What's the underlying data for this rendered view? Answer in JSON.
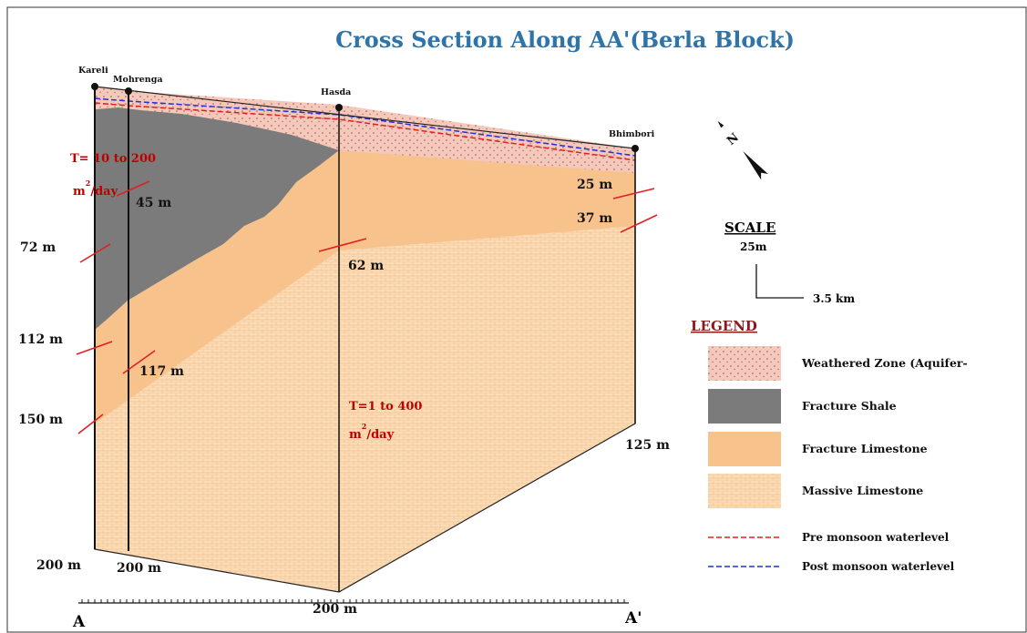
{
  "title": "Cross Section Along AA'(Berla Block)",
  "wells": [
    "Kareli",
    "Mohrenga",
    "Hasda",
    "Bhimbori"
  ],
  "depth_labels": [
    "45 m",
    "72 m",
    "112 m",
    "117 m",
    "150 m",
    "62 m",
    "25 m",
    "37 m",
    "125 m",
    "200 m",
    "200 m",
    "200 m"
  ],
  "transmissivity": [
    {
      "text": "T= 10 to 200",
      "unit": "m",
      "exponent": "2",
      "per": "/day"
    },
    {
      "text": "T=1 to 400",
      "unit": "m",
      "exponent": "2",
      "per": "/day"
    }
  ],
  "north": "N",
  "scale": {
    "heading": "SCALE",
    "vertical": "25m",
    "horizontal": "3.5 km"
  },
  "legend": {
    "title": "LEGEND",
    "items": [
      "Weathered Zone (Aquifer-",
      "Fracture Shale",
      "Fracture Limestone",
      "Massive Limestone",
      "Pre monsoon waterlevel",
      "Post monsoon waterlevel"
    ]
  },
  "section_ends": [
    "A",
    "A'"
  ]
}
